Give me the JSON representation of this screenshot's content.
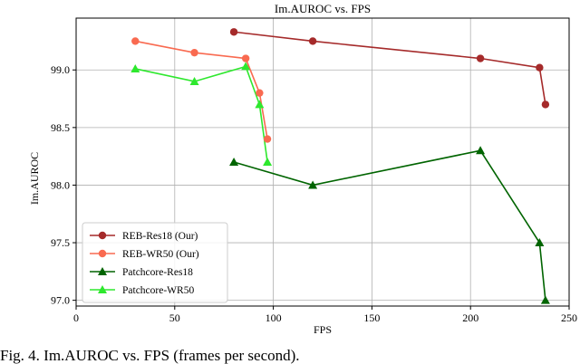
{
  "chart_data": {
    "type": "line",
    "title": "Im.AUROC vs. FPS",
    "xlabel": "FPS",
    "ylabel": "Im.AUROC",
    "xlim": [
      0,
      250
    ],
    "ylim": [
      96.95,
      99.45
    ],
    "xticks": [
      0,
      50,
      100,
      150,
      200,
      250
    ],
    "yticks": [
      97.0,
      97.5,
      98.0,
      98.5,
      99.0
    ],
    "grid": true,
    "legend_position": "lower-left",
    "series": [
      {
        "name": "REB-Res18 (Our)",
        "color": "#a52a2a",
        "marker": "circle",
        "x": [
          80,
          120,
          205,
          235,
          238
        ],
        "y": [
          99.33,
          99.25,
          99.1,
          99.02,
          98.7
        ]
      },
      {
        "name": "REB-WR50 (Our)",
        "color": "#f96a50",
        "marker": "circle",
        "x": [
          30,
          60,
          86,
          93,
          97
        ],
        "y": [
          99.25,
          99.15,
          99.1,
          98.8,
          98.4
        ]
      },
      {
        "name": "Patchcore-Res18",
        "color": "#006400",
        "marker": "triangle",
        "x": [
          80,
          120,
          205,
          235,
          238
        ],
        "y": [
          98.2,
          98.0,
          98.3,
          97.5,
          97.0
        ]
      },
      {
        "name": "Patchcore-WR50",
        "color": "#2ee82e",
        "marker": "triangle",
        "x": [
          30,
          60,
          86,
          93,
          97
        ],
        "y": [
          99.01,
          98.9,
          99.03,
          98.7,
          98.2
        ]
      }
    ]
  },
  "caption": "Fig. 4.  Im.AUROC vs. FPS (frames per second)."
}
